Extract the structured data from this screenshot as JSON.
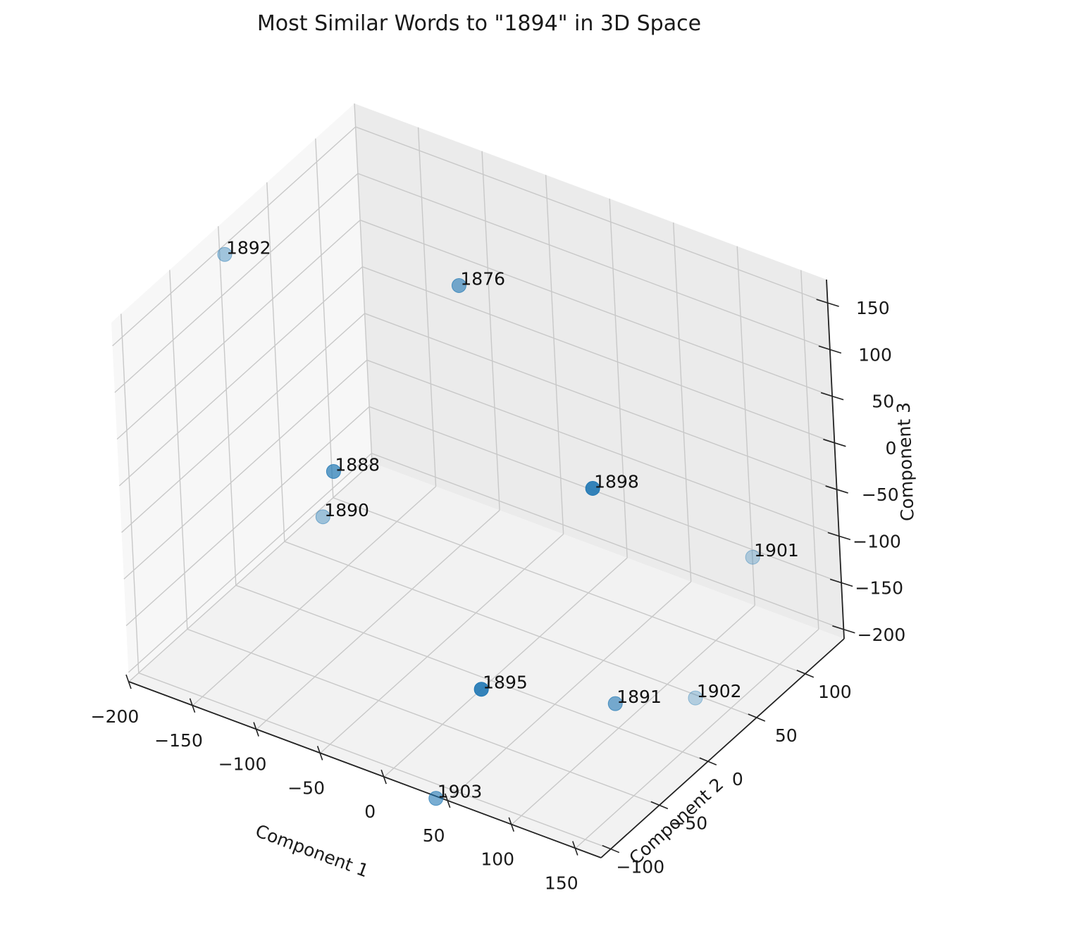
{
  "chart_data": {
    "type": "scatter",
    "title": "Most Similar Words to \"1894\" in 3D Space",
    "xlabel": "Component 1",
    "ylabel": "Component 2",
    "zlabel": "Component 3",
    "xlim": [
      -200,
      170
    ],
    "ylim": [
      -110,
      140
    ],
    "zlim": [
      -210,
      175
    ],
    "x_ticks": [
      -200,
      -150,
      -100,
      -50,
      0,
      50,
      100,
      150
    ],
    "y_ticks": [
      -100,
      -50,
      0,
      50,
      100
    ],
    "z_ticks": [
      -200,
      -150,
      -100,
      -50,
      0,
      50,
      100,
      150
    ],
    "x_tick_labels": [
      "−200",
      "−150",
      "−100",
      "−50",
      "0",
      "50",
      "100",
      "150"
    ],
    "y_tick_labels": [
      "−100",
      "−50",
      "0",
      "50",
      "100"
    ],
    "z_tick_labels": [
      "−200",
      "−150",
      "−100",
      "−50",
      "0",
      "50",
      "100",
      "150"
    ],
    "grid": true,
    "marker_color": "#1f77b4",
    "points": [
      {
        "label": "1876",
        "x": -75,
        "y": 80,
        "z": 100,
        "alpha": 0.6
      },
      {
        "label": "1892",
        "x": -200,
        "y": 5,
        "z": 140,
        "alpha": 0.4
      },
      {
        "label": "1898",
        "x": 40,
        "y": 60,
        "z": -40,
        "alpha": 0.9
      },
      {
        "label": "1901",
        "x": 165,
        "y": 60,
        "z": -50,
        "alpha": 0.3
      },
      {
        "label": "1888",
        "x": -150,
        "y": 40,
        "z": -100,
        "alpha": 0.7
      },
      {
        "label": "1890",
        "x": -140,
        "y": 15,
        "z": -120,
        "alpha": 0.4
      },
      {
        "label": "1895",
        "x": 0,
        "y": -10,
        "z": -210,
        "alpha": 0.9
      },
      {
        "label": "1902",
        "x": 130,
        "y": 40,
        "z": -200,
        "alpha": 0.3
      },
      {
        "label": "1891",
        "x": 155,
        "y": -70,
        "z": -90,
        "alpha": 0.6
      },
      {
        "label": "1903",
        "x": 0,
        "y": -60,
        "z": -280,
        "alpha": 0.6
      }
    ]
  }
}
